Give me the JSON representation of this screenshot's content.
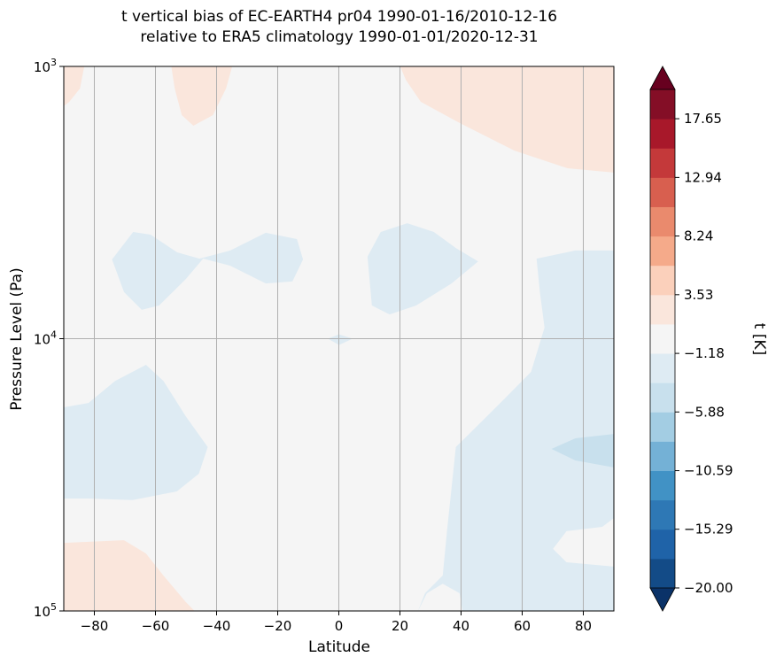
{
  "chart_data": {
    "type": "contourf",
    "title_line1": "t vertical bias of EC-EARTH4 pr04 1990-01-16/2010-12-16",
    "title_line2": "relative to ERA5 climatology 1990-01-01/2020-12-31",
    "xlabel": "Latitude",
    "ylabel": "Pressure Level (Pa)",
    "xlim": [
      -90,
      90
    ],
    "ylim": [
      1000,
      100000
    ],
    "yscale": "log",
    "grid": true,
    "x_ticks": [
      -80,
      -60,
      -40,
      -20,
      0,
      20,
      40,
      60,
      80
    ],
    "x_tick_labels": [
      "−80",
      "−60",
      "−40",
      "−20",
      "0",
      "20",
      "40",
      "60",
      "80"
    ],
    "y_ticks": [
      {
        "base": "10",
        "exp": "3",
        "value": 1000
      },
      {
        "base": "10",
        "exp": "4",
        "value": 10000
      },
      {
        "base": "10",
        "exp": "5",
        "value": 100000
      }
    ],
    "colorbar": {
      "label": "t [K]",
      "extend": "both",
      "levels_min": -20.0,
      "levels_max": 20.0,
      "tick_values": [
        -20.0,
        -15.29,
        -10.59,
        -5.88,
        -1.18,
        3.53,
        8.24,
        12.94,
        17.65
      ],
      "tick_labels": [
        "−20.00",
        "−15.29",
        "−10.59",
        "−5.88",
        "−1.18",
        "3.53",
        "8.24",
        "12.94",
        "17.65"
      ],
      "colors": [
        "#0a3268",
        "#134b87",
        "#1f63a8",
        "#2e78b5",
        "#4192c5",
        "#74b1d6",
        "#a3cde3",
        "#c8e0ed",
        "#deebf3",
        "#f5f5f5",
        "#fae6dc",
        "#fbd0bb",
        "#f5aa8a",
        "#ea8a6d",
        "#d85f4f",
        "#c4393a",
        "#a8182a",
        "#840e26",
        "#67001f"
      ]
    },
    "background_level_color": "#f5f5f5",
    "regions": [
      {
        "color": "#fae6dc",
        "points": [
          [
            -90,
            3
          ],
          [
            -83.3,
            3
          ],
          [
            -84.7,
            3.081
          ],
          [
            -88.2,
            3.13
          ],
          [
            -90,
            3.146
          ]
        ]
      },
      {
        "color": "#fae6dc",
        "points": [
          [
            -54.8,
            3
          ],
          [
            -34.9,
            3
          ],
          [
            -36.9,
            3.081
          ],
          [
            -41.2,
            3.179
          ],
          [
            -47.6,
            3.218
          ],
          [
            -51.4,
            3.179
          ],
          [
            -53.7,
            3.081
          ]
        ]
      },
      {
        "color": "#fae6dc",
        "points": [
          [
            20.1,
            3
          ],
          [
            90,
            3
          ],
          [
            90,
            3.39
          ],
          [
            74.8,
            3.374
          ],
          [
            57.4,
            3.309
          ],
          [
            40.1,
            3.211
          ],
          [
            26.8,
            3.13
          ],
          [
            21.9,
            3.049
          ]
        ]
      },
      {
        "color": "#deebf3",
        "points": [
          [
            -74.2,
            3.709
          ],
          [
            -67.3,
            3.608
          ],
          [
            -61.6,
            3.618
          ],
          [
            -52.9,
            3.683
          ],
          [
            -45.6,
            3.706
          ],
          [
            -35.5,
            3.676
          ],
          [
            -23.9,
            3.611
          ],
          [
            -13.7,
            3.634
          ],
          [
            -11.7,
            3.709
          ],
          [
            -15.2,
            3.79
          ],
          [
            -23.9,
            3.797
          ],
          [
            -35.5,
            3.732
          ],
          [
            -44.4,
            3.706
          ],
          [
            -50.1,
            3.781
          ],
          [
            -58.8,
            3.878
          ],
          [
            -64.5,
            3.894
          ],
          [
            -70.3,
            3.829
          ]
        ]
      },
      {
        "color": "#deebf3",
        "points": [
          [
            9.4,
            3.699
          ],
          [
            13.7,
            3.608
          ],
          [
            22.4,
            3.576
          ],
          [
            31.1,
            3.608
          ],
          [
            38.3,
            3.667
          ],
          [
            45.6,
            3.716
          ],
          [
            36.9,
            3.797
          ],
          [
            25.3,
            3.878
          ],
          [
            16.6,
            3.911
          ],
          [
            10.8,
            3.878
          ]
        ]
      },
      {
        "color": "#deebf3",
        "points": [
          [
            -3.6,
            4.0
          ],
          [
            0.1,
            3.984
          ],
          [
            4.5,
            4.0
          ],
          [
            0.1,
            4.023
          ]
        ]
      },
      {
        "color": "#deebf3",
        "points": [
          [
            -90,
            4.252
          ],
          [
            -81.9,
            4.236
          ],
          [
            -73.2,
            4.155
          ],
          [
            -63.1,
            4.096
          ],
          [
            -57.4,
            4.155
          ],
          [
            -50.1,
            4.285
          ],
          [
            -42.9,
            4.398
          ],
          [
            -45.8,
            4.496
          ],
          [
            -53.0,
            4.561
          ],
          [
            -67.5,
            4.593
          ],
          [
            -81.9,
            4.587
          ],
          [
            -90,
            4.587
          ]
        ]
      },
      {
        "color": "#fae6dc",
        "points": [
          [
            -90,
            4.75
          ],
          [
            -70.3,
            4.74
          ],
          [
            -63.1,
            4.789
          ],
          [
            -57.4,
            4.87
          ],
          [
            -50.1,
            4.967
          ],
          [
            -47.2,
            5.0
          ],
          [
            -90,
            5.0
          ]
        ]
      },
      {
        "color": "#deebf3",
        "points": [
          [
            64.7,
            3.706
          ],
          [
            77.4,
            3.676
          ],
          [
            90,
            3.676
          ],
          [
            90,
            5.0
          ],
          [
            25.9,
            5.0
          ],
          [
            28.2,
            4.935
          ],
          [
            34.0,
            4.87
          ],
          [
            35.4,
            4.707
          ],
          [
            38.3,
            4.398
          ],
          [
            45.6,
            4.317
          ],
          [
            54.3,
            4.22
          ],
          [
            62.9,
            4.122
          ],
          [
            67.3,
            3.959
          ],
          [
            65.8,
            3.829
          ]
        ]
      },
      {
        "color": "#c8e0ed",
        "points": [
          [
            69.6,
            4.405
          ],
          [
            77.4,
            4.366
          ],
          [
            90,
            4.35
          ],
          [
            90,
            4.473
          ],
          [
            77.4,
            4.447
          ]
        ]
      },
      {
        "color": "#f5f5f5",
        "points": [
          [
            90,
            4.659
          ],
          [
            86.2,
            4.691
          ],
          [
            74.5,
            4.707
          ],
          [
            70.1,
            4.772
          ],
          [
            74.5,
            4.821
          ],
          [
            90,
            4.837
          ]
        ]
      },
      {
        "color": "#f5f5f5",
        "points": [
          [
            25.9,
            5.0
          ],
          [
            28.8,
            4.935
          ],
          [
            34.0,
            4.9
          ],
          [
            39.5,
            4.935
          ],
          [
            40.5,
            5.0
          ]
        ]
      }
    ]
  }
}
